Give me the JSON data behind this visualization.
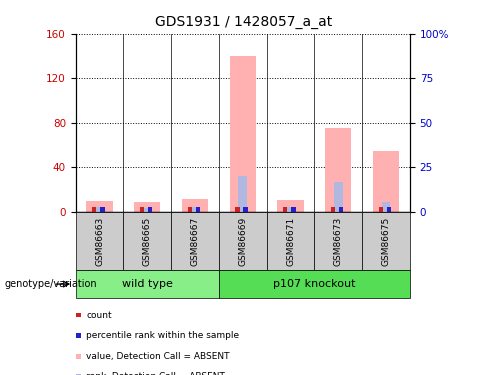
{
  "title": "GDS1931 / 1428057_a_at",
  "samples": [
    "GSM86663",
    "GSM86665",
    "GSM86667",
    "GSM86669",
    "GSM86671",
    "GSM86673",
    "GSM86675"
  ],
  "pink_bars": [
    10,
    9,
    12,
    140,
    11,
    75,
    55
  ],
  "blue_bars_pct": [
    2.5,
    2.0,
    3.0,
    20,
    3.0,
    17,
    5.5
  ],
  "ylim_left": [
    0,
    160
  ],
  "ylim_right": [
    0,
    100
  ],
  "yticks_left": [
    0,
    40,
    80,
    120,
    160
  ],
  "yticks_right": [
    0,
    25,
    50,
    75,
    100
  ],
  "yticklabels_left": [
    "0",
    "40",
    "80",
    "120",
    "160"
  ],
  "yticklabels_right": [
    "0",
    "25",
    "50",
    "75",
    "100%"
  ],
  "groups": [
    {
      "label": "wild type",
      "start": 0,
      "end": 3,
      "color": "#88ee88"
    },
    {
      "label": "p107 knockout",
      "start": 3,
      "end": 7,
      "color": "#55dd55"
    }
  ],
  "legend_items": [
    {
      "color": "#cc2222",
      "label": "count"
    },
    {
      "color": "#2222cc",
      "label": "percentile rank within the sample"
    },
    {
      "color": "#ffb0b0",
      "label": "value, Detection Call = ABSENT"
    },
    {
      "color": "#b0b8e0",
      "label": "rank, Detection Call = ABSENT"
    }
  ],
  "pink_color": "#ffb0b0",
  "blue_color": "#b0b8e0",
  "red_color": "#cc2222",
  "dark_blue_color": "#2222cc",
  "left_axis_color": "#cc0000",
  "right_axis_color": "#0000cc",
  "background_color": "#ffffff",
  "group_row_color": "#cccccc",
  "genotype_label": "genotype/variation"
}
